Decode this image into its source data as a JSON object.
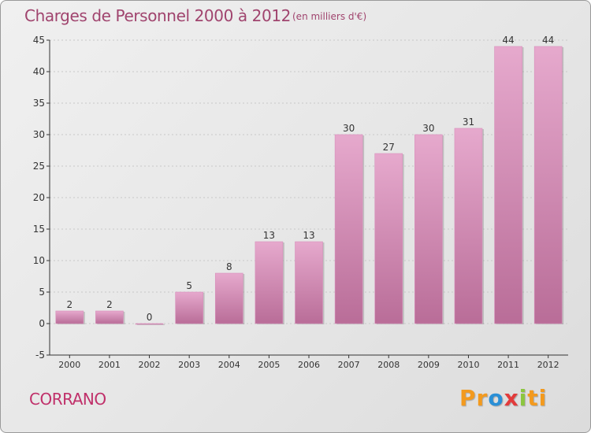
{
  "header": {
    "title": "Charges de Personnel 2000 à 2012",
    "subtitle": "(en milliers d'€)"
  },
  "footer": {
    "commune": "CORRANO",
    "logo": "Proxiti"
  },
  "colors": {
    "bar_light": "#e6a9cd",
    "bar_dark": "#b96d98",
    "text": "#a0446e",
    "axis": "#333333",
    "grid": "#c8c8c8"
  },
  "chart_data": {
    "type": "bar",
    "title": "Charges de Personnel 2000 à 2012",
    "subtitle": "(en milliers d'€)",
    "xlabel": "",
    "ylabel": "",
    "categories": [
      "2000",
      "2001",
      "2002",
      "2003",
      "2004",
      "2005",
      "2006",
      "2007",
      "2008",
      "2009",
      "2010",
      "2011",
      "2012"
    ],
    "values": [
      2,
      2,
      0,
      5,
      8,
      13,
      13,
      30,
      27,
      30,
      31,
      44,
      44
    ],
    "ylim": [
      -5,
      45
    ],
    "yticks": [
      -5,
      0,
      5,
      10,
      15,
      20,
      25,
      30,
      35,
      40,
      45
    ],
    "grid": true,
    "legend": "none"
  }
}
